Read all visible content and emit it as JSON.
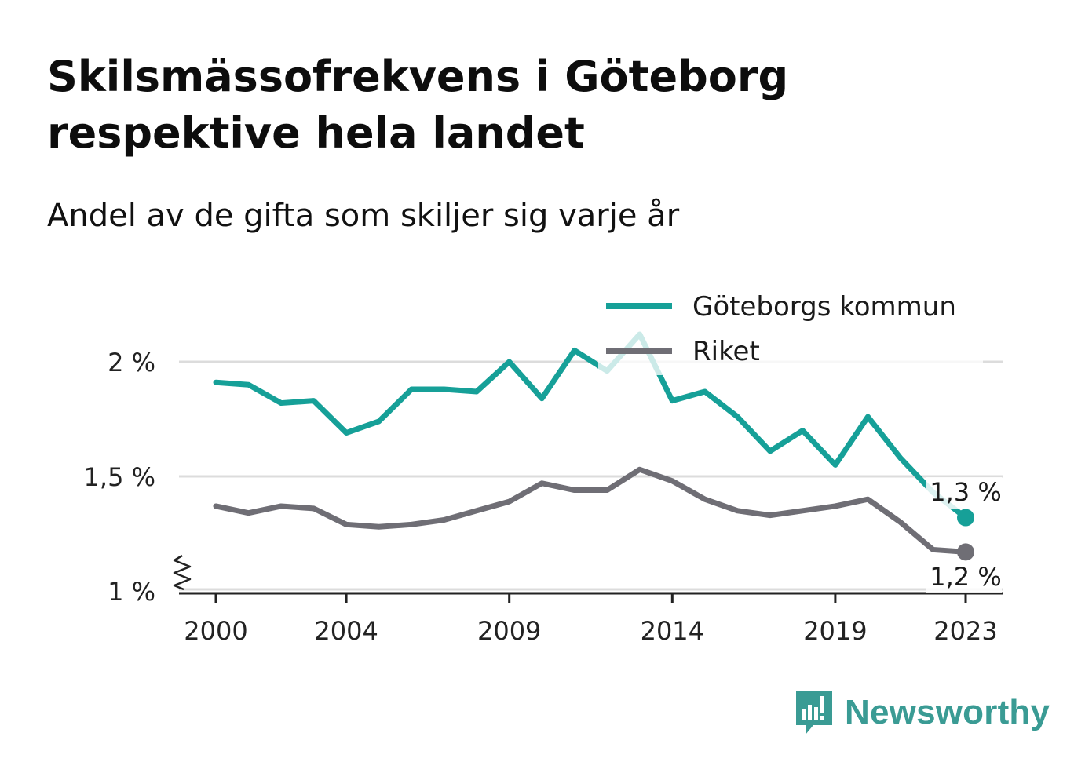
{
  "title": "Skilsmässofrekvens i Göteborg respektive hela landet",
  "subtitle": "Andel av de gifta som skiljer sig varje år",
  "brand": {
    "name": "Newsworthy",
    "logo_icon": "bar-chart-speech-bubble-icon",
    "color": "#3a9b94"
  },
  "chart_data": {
    "type": "line",
    "title": "Skilsmässofrekvens i Göteborg respektive hela landet",
    "subtitle": "Andel av de gifta som skiljer sig varje år",
    "xlabel": "",
    "ylabel": "",
    "x": [
      2000,
      2001,
      2002,
      2003,
      2004,
      2005,
      2006,
      2007,
      2008,
      2009,
      2010,
      2011,
      2012,
      2013,
      2014,
      2015,
      2016,
      2017,
      2018,
      2019,
      2020,
      2021,
      2022,
      2023
    ],
    "x_ticks": [
      2000,
      2004,
      2009,
      2014,
      2019,
      2023
    ],
    "y_ticks": [
      {
        "value": 1.0,
        "label": "1 %"
      },
      {
        "value": 1.5,
        "label": "1,5 %"
      },
      {
        "value": 2.0,
        "label": "2 %"
      }
    ],
    "ylim": [
      1.0,
      2.2
    ],
    "y_axis_break": true,
    "grid": true,
    "legend_position": "top-right",
    "series": [
      {
        "name": "Göteborgs kommun",
        "color": "#16a098",
        "values": [
          1.91,
          1.9,
          1.82,
          1.83,
          1.69,
          1.74,
          1.88,
          1.88,
          1.87,
          2.0,
          1.84,
          2.05,
          1.96,
          2.12,
          1.83,
          1.87,
          1.76,
          1.61,
          1.7,
          1.55,
          1.76,
          1.58,
          1.43,
          1.32
        ],
        "end_label": "1,3 %"
      },
      {
        "name": "Riket",
        "color": "#6f6e75",
        "values": [
          1.37,
          1.34,
          1.37,
          1.36,
          1.29,
          1.28,
          1.29,
          1.31,
          1.35,
          1.39,
          1.47,
          1.44,
          1.44,
          1.53,
          1.48,
          1.4,
          1.35,
          1.33,
          1.35,
          1.37,
          1.4,
          1.3,
          1.18,
          1.17
        ],
        "end_label": "1,2 %"
      }
    ]
  }
}
